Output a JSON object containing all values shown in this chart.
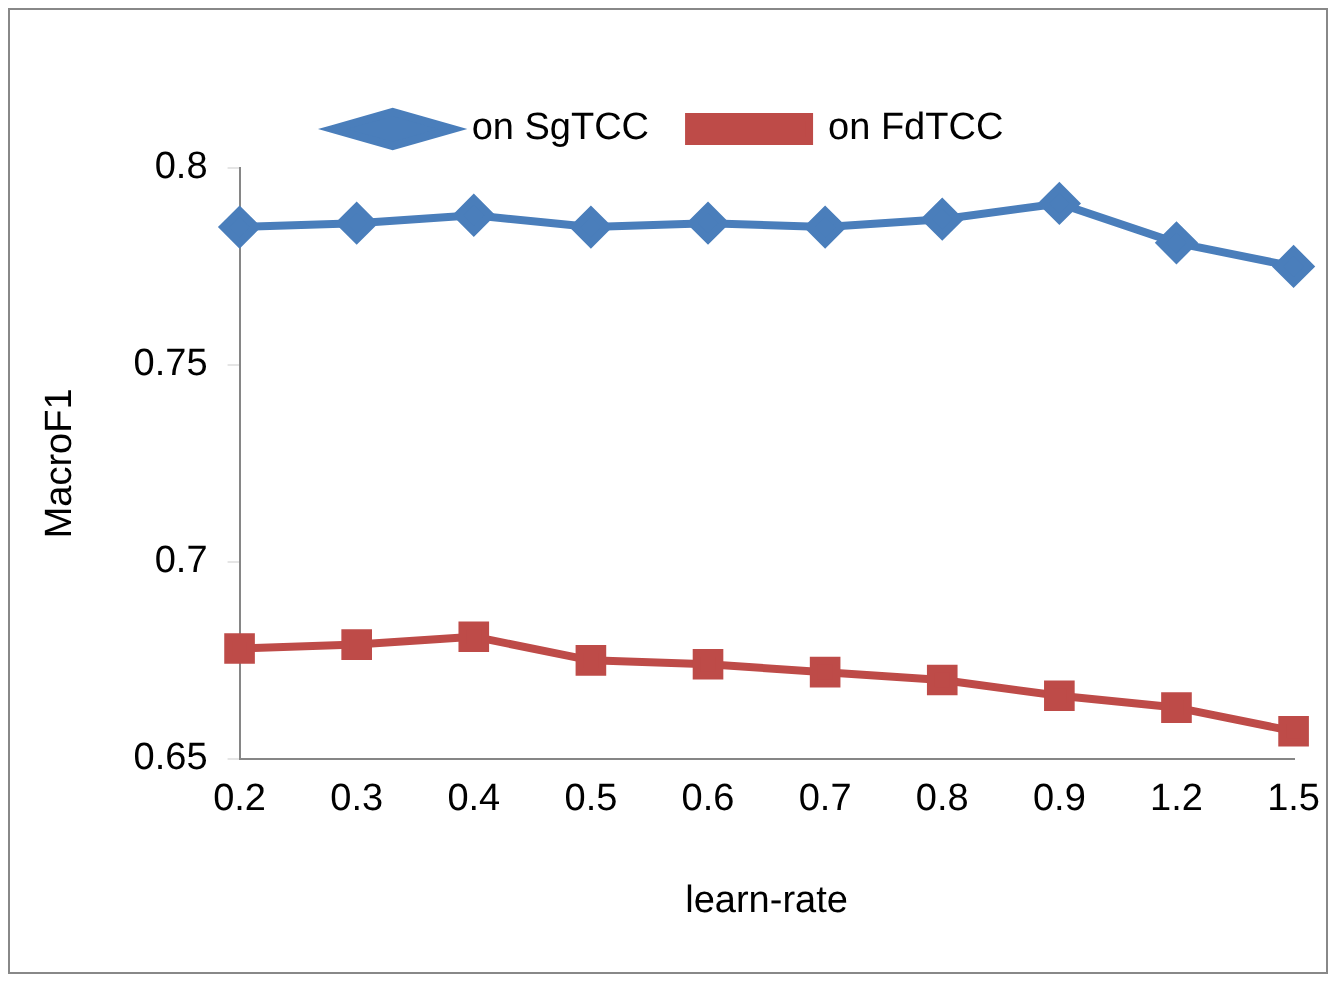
{
  "chart_data": {
    "type": "line",
    "xlabel": "learn-rate",
    "ylabel": "MacroF1",
    "categories": [
      "0.2",
      "0.3",
      "0.4",
      "0.5",
      "0.6",
      "0.7",
      "0.8",
      "0.9",
      "1.2",
      "1.5"
    ],
    "series": [
      {
        "name": "on SgTCC",
        "color": "#4a7ebb",
        "marker": "diamond",
        "values": [
          0.785,
          0.786,
          0.788,
          0.785,
          0.786,
          0.785,
          0.787,
          0.791,
          0.781,
          0.775
        ]
      },
      {
        "name": "on FdTCC",
        "color": "#be4b48",
        "marker": "square",
        "values": [
          0.678,
          0.679,
          0.681,
          0.675,
          0.674,
          0.672,
          0.67,
          0.666,
          0.663,
          0.657
        ]
      }
    ],
    "ylim": [
      0.65,
      0.8
    ],
    "yticks": [
      0.65,
      0.7,
      0.75,
      0.8
    ],
    "grid": false,
    "legend": "top",
    "line_style": "solid"
  }
}
